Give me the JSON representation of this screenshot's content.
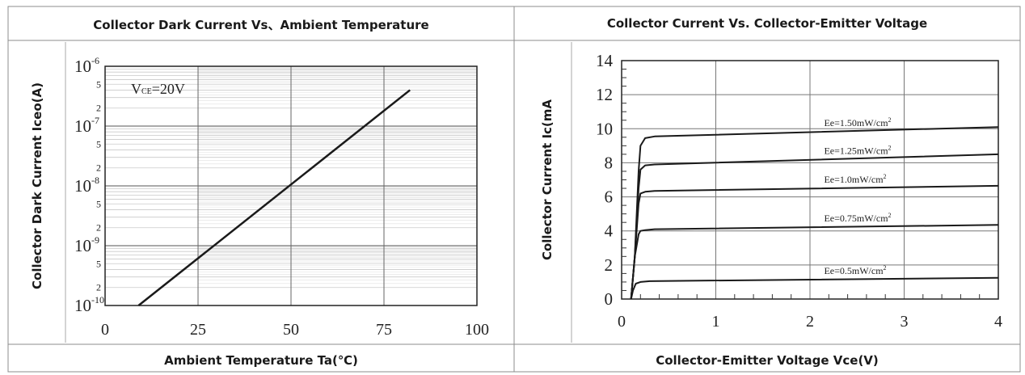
{
  "panels": {
    "left": {
      "title": "Collector Dark Current Vs、Ambient Temperature",
      "xlabel": "Ambient Temperature Ta(℃)"
    },
    "right": {
      "title": "Collector Current Vs. Collector-Emitter Voltage",
      "xlabel": "Collector-Emitter Voltage Vce(V)"
    }
  },
  "chart_data": [
    {
      "type": "line",
      "title": "Collector Dark Current Vs、Ambient Temperature",
      "xlabel": "Ambient Temperature Ta(℃)",
      "ylabel": "Collector Dark Current Iceo(A)",
      "xlim": [
        0,
        100
      ],
      "ylim": [
        1e-10,
        1e-06
      ],
      "yscale": "log",
      "grid": true,
      "x_ticks": [
        "0",
        "25",
        "50",
        "75",
        "100"
      ],
      "y_decades": [
        {
          "base": "10",
          "exp": "-6"
        },
        {
          "base": "10",
          "exp": "-7"
        },
        {
          "base": "10",
          "exp": "-8"
        },
        {
          "base": "10",
          "exp": "-9"
        },
        {
          "base": "10",
          "exp": "-10"
        }
      ],
      "y_minor_labels": [
        "5",
        "2"
      ],
      "annotation": {
        "main": "V",
        "sub": "CE",
        "rest": "=20V"
      },
      "series": [
        {
          "x": [
            9,
            82
          ],
          "y": [
            1e-10,
            4e-07
          ]
        }
      ]
    },
    {
      "type": "line",
      "title": "Collector Current Vs. Collector-Emitter Voltage",
      "xlabel": "Collector-Emitter Voltage Vce(V)",
      "ylabel": "Collector Current Ic(mA",
      "xlim": [
        0,
        4
      ],
      "ylim": [
        0,
        14
      ],
      "grid": true,
      "x_ticks": [
        "0",
        "1",
        "2",
        "3",
        "4"
      ],
      "y_ticks": [
        "0",
        "2",
        "4",
        "6",
        "8",
        "10",
        "12",
        "14"
      ],
      "series": [
        {
          "name": "Ee=1.50mW/cm",
          "label_sup": "2",
          "x": [
            0.1,
            0.14,
            0.18,
            0.2,
            0.25,
            0.35,
            4.0
          ],
          "y": [
            0,
            2.5,
            7.5,
            9.0,
            9.45,
            9.55,
            10.1
          ]
        },
        {
          "name": "Ee=1.25mW/cm",
          "label_sup": "2",
          "x": [
            0.1,
            0.14,
            0.18,
            0.2,
            0.25,
            0.35,
            4.0
          ],
          "y": [
            0,
            2.5,
            6.5,
            7.6,
            7.85,
            7.9,
            8.5
          ]
        },
        {
          "name": "Ee=1.0mW/cm",
          "label_sup": "2",
          "x": [
            0.1,
            0.14,
            0.18,
            0.2,
            0.25,
            0.35,
            4.0
          ],
          "y": [
            0,
            2.5,
            5.6,
            6.2,
            6.3,
            6.35,
            6.65
          ]
        },
        {
          "name": "Ee=0.75mW/cm",
          "label_sup": "2",
          "x": [
            0.1,
            0.14,
            0.18,
            0.2,
            0.25,
            0.35,
            4.0
          ],
          "y": [
            0,
            2.5,
            3.8,
            4.0,
            4.05,
            4.1,
            4.35
          ]
        },
        {
          "name": "Ee=0.5mW/cm",
          "label_sup": "2",
          "x": [
            0.1,
            0.12,
            0.15,
            0.2,
            0.3,
            4.0
          ],
          "y": [
            0,
            0.5,
            0.9,
            1.0,
            1.05,
            1.25
          ]
        }
      ]
    }
  ]
}
